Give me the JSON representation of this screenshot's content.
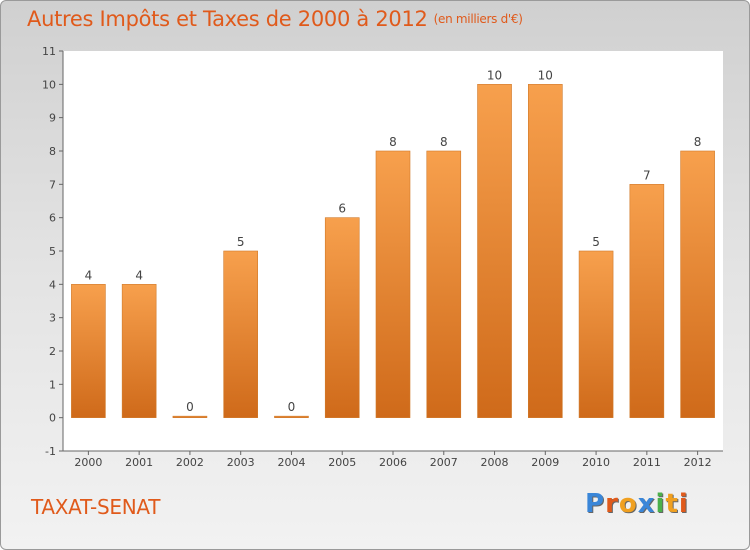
{
  "header": {
    "title": "Autres Impôts et Taxes de 2000 à 2012",
    "subtitle": "(en milliers d'€)"
  },
  "commune": "TAXAT-SENAT",
  "logo": {
    "text": "Proxiti",
    "colors": [
      "#3a86d8",
      "#e05a1b",
      "#f0a020",
      "#3a86d8",
      "#4bb04b",
      "#f0a020",
      "#e05a1b"
    ]
  },
  "colors": {
    "bar_top": "#f7a04d",
    "bar_bottom": "#cf6a1a",
    "title": "#e05a1b"
  },
  "chart_data": {
    "type": "bar",
    "categories": [
      "2000",
      "2001",
      "2002",
      "2003",
      "2004",
      "2005",
      "2006",
      "2007",
      "2008",
      "2009",
      "2010",
      "2011",
      "2012"
    ],
    "values": [
      4,
      4,
      0,
      5,
      0,
      6,
      8,
      8,
      10,
      10,
      5,
      7,
      8
    ],
    "y_ticks": [
      "-1",
      "0",
      "1",
      "2",
      "3",
      "4",
      "5",
      "6",
      "7",
      "8",
      "9",
      "10",
      "11"
    ],
    "ylim": [
      -1,
      11
    ],
    "grid": false
  }
}
